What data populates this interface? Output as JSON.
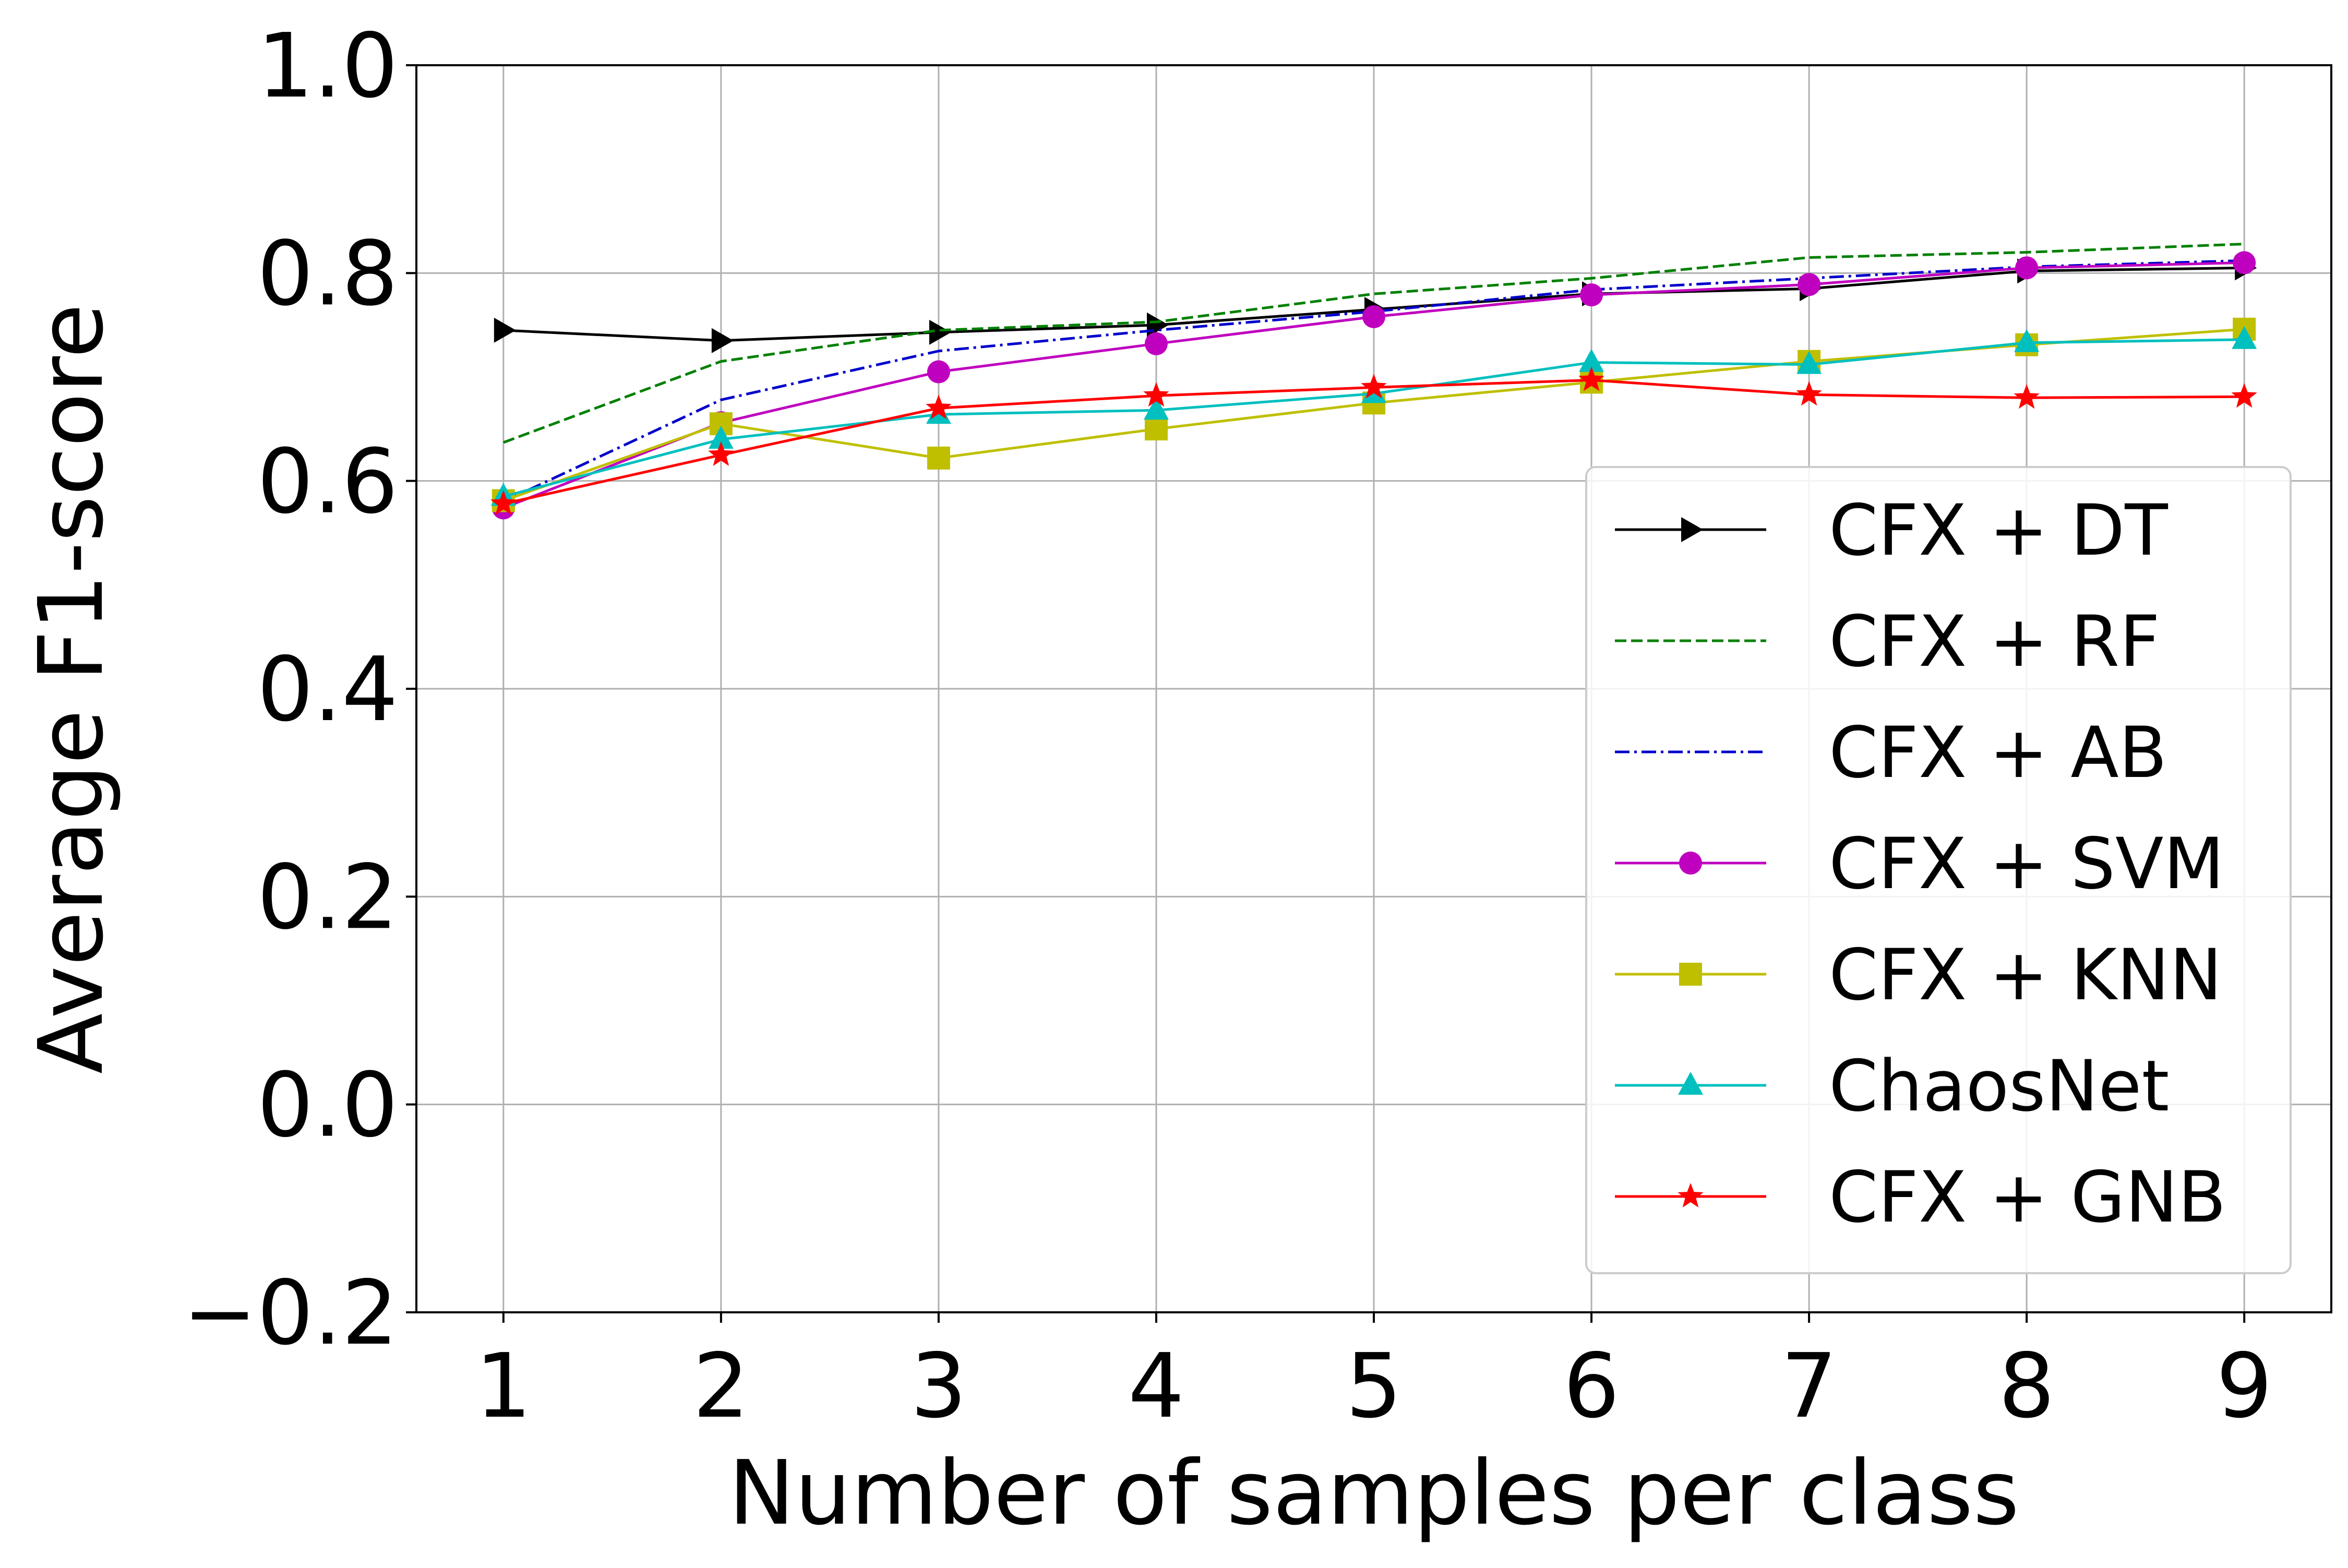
{
  "chart_data": {
    "type": "line",
    "title": "",
    "xlabel": "Number of samples per class",
    "ylabel": "Average F1-score",
    "x": [
      1,
      2,
      3,
      4,
      5,
      6,
      7,
      8,
      9
    ],
    "xticks": [
      "1",
      "2",
      "3",
      "4",
      "5",
      "6",
      "7",
      "8",
      "9"
    ],
    "xlim": [
      0.6,
      9.4
    ],
    "ylim": [
      -0.2,
      1.0
    ],
    "yticks": [
      "−0.2",
      "0.0",
      "0.2",
      "0.4",
      "0.6",
      "0.8",
      "1.0"
    ],
    "ytick_values": [
      -0.2,
      0.0,
      0.2,
      0.4,
      0.6,
      0.8,
      1.0
    ],
    "grid": true,
    "legend_position": "right",
    "series": [
      {
        "name": "CFX + DT",
        "color": "#000000",
        "dash": "solid",
        "marker": "triangle-right",
        "values": [
          0.745,
          0.735,
          0.743,
          0.75,
          0.765,
          0.78,
          0.785,
          0.802,
          0.805
        ]
      },
      {
        "name": "CFX + RF",
        "color": "#008000",
        "dash": "dashed",
        "marker": "none",
        "values": [
          0.637,
          0.715,
          0.745,
          0.753,
          0.78,
          0.795,
          0.815,
          0.82,
          0.828
        ]
      },
      {
        "name": "CFX + AB",
        "color": "#0000cc",
        "dash": "dashdot",
        "marker": "none",
        "values": [
          0.58,
          0.678,
          0.725,
          0.745,
          0.763,
          0.784,
          0.795,
          0.806,
          0.812
        ]
      },
      {
        "name": "CFX + SVM",
        "color": "#bf00bf",
        "dash": "solid",
        "marker": "circle",
        "values": [
          0.574,
          0.656,
          0.705,
          0.732,
          0.758,
          0.779,
          0.789,
          0.805,
          0.81
        ]
      },
      {
        "name": "CFX + KNN",
        "color": "#bfbf00",
        "dash": "solid",
        "marker": "square",
        "values": [
          0.581,
          0.655,
          0.622,
          0.65,
          0.675,
          0.695,
          0.715,
          0.731,
          0.746
        ]
      },
      {
        "name": "ChaosNet",
        "color": "#00bfbf",
        "dash": "solid",
        "marker": "triangle-up",
        "values": [
          0.585,
          0.64,
          0.664,
          0.668,
          0.684,
          0.714,
          0.712,
          0.733,
          0.736
        ]
      },
      {
        "name": "CFX + GNB",
        "color": "#ff0000",
        "dash": "solid",
        "marker": "star",
        "values": [
          0.578,
          0.625,
          0.67,
          0.682,
          0.69,
          0.697,
          0.683,
          0.68,
          0.681
        ]
      }
    ]
  }
}
